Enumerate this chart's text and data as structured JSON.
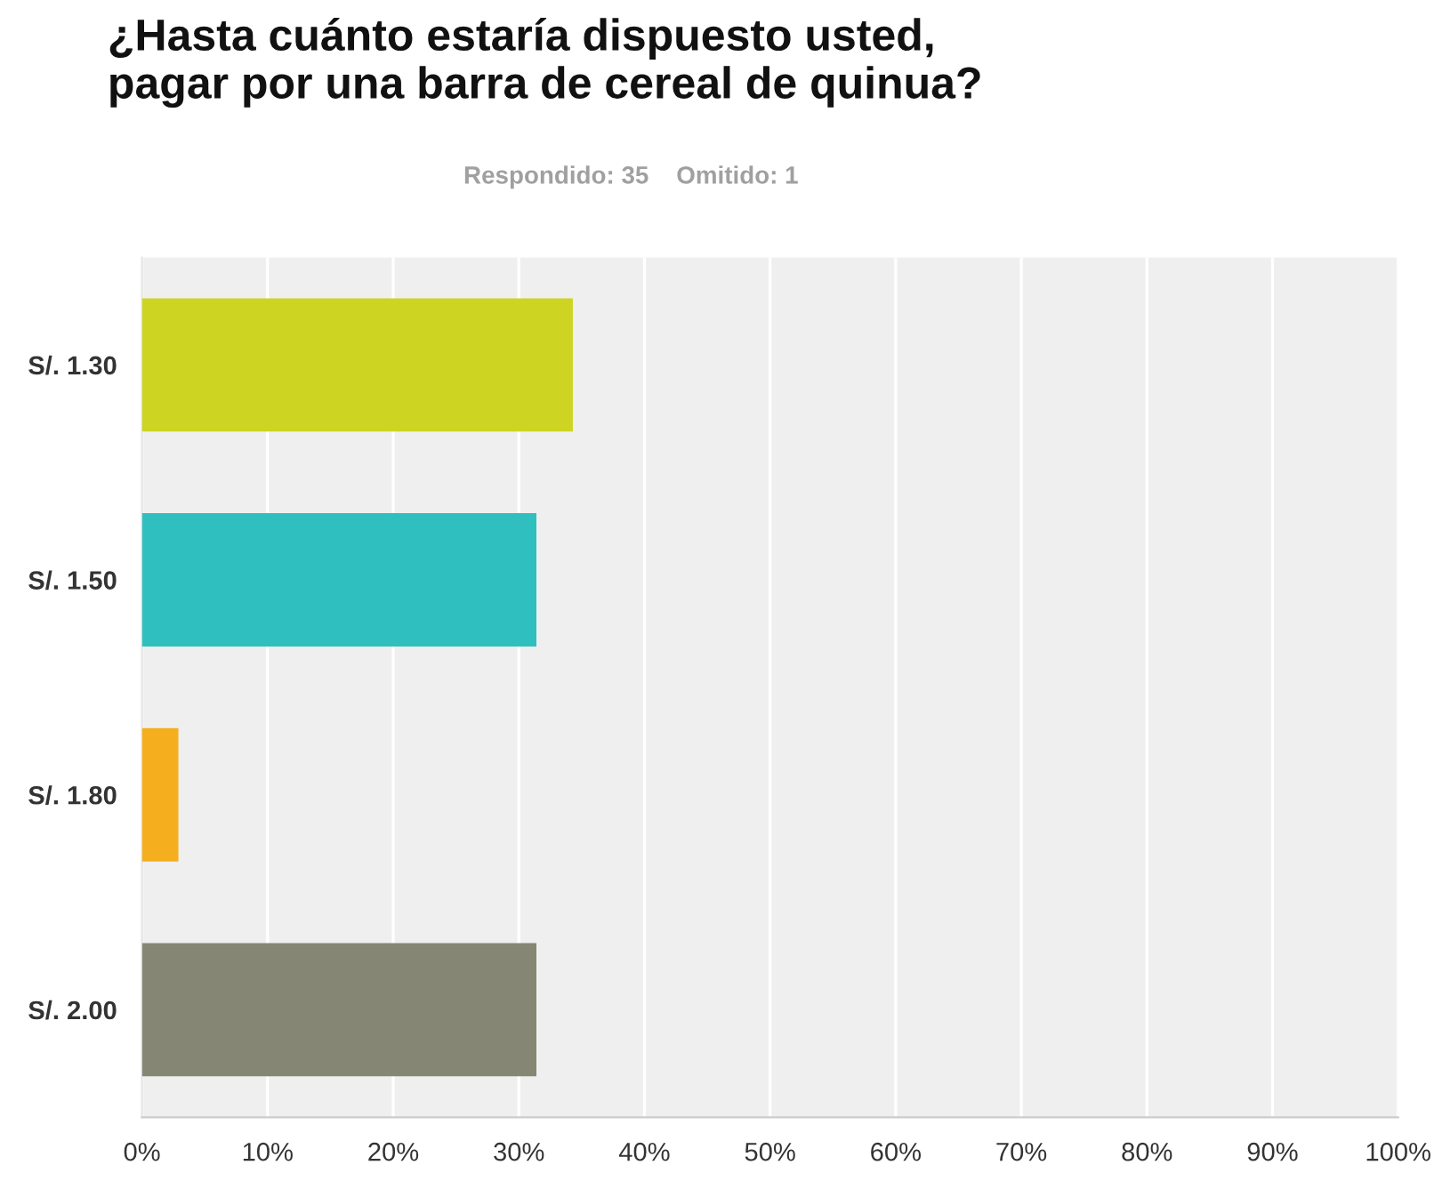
{
  "chart_data": {
    "type": "bar",
    "orientation": "horizontal",
    "title": "¿Hasta cuánto estaría dispuesto usted,\npagar por una barra de cereal de quinua?",
    "subtitle": "Respondido: 35    Omitido: 1",
    "categories": [
      "S/. 1.30",
      "S/. 1.50",
      "S/. 1.80",
      "S/. 2.00"
    ],
    "values": [
      34.3,
      31.4,
      2.9,
      31.4
    ],
    "colors": [
      "#cdd422",
      "#30bfbf",
      "#f5ae1e",
      "#868675"
    ],
    "xlim": [
      0,
      100
    ],
    "xticks": [
      {
        "value": 0,
        "label": "0%"
      },
      {
        "value": 10,
        "label": "10%"
      },
      {
        "value": 20,
        "label": "20%"
      },
      {
        "value": 30,
        "label": "30%"
      },
      {
        "value": 40,
        "label": "40%"
      },
      {
        "value": 50,
        "label": "50%"
      },
      {
        "value": 60,
        "label": "60%"
      },
      {
        "value": 70,
        "label": "70%"
      },
      {
        "value": 80,
        "label": "80%"
      },
      {
        "value": 90,
        "label": "90%"
      },
      {
        "value": 100,
        "label": "100%"
      }
    ],
    "grid": "x"
  }
}
